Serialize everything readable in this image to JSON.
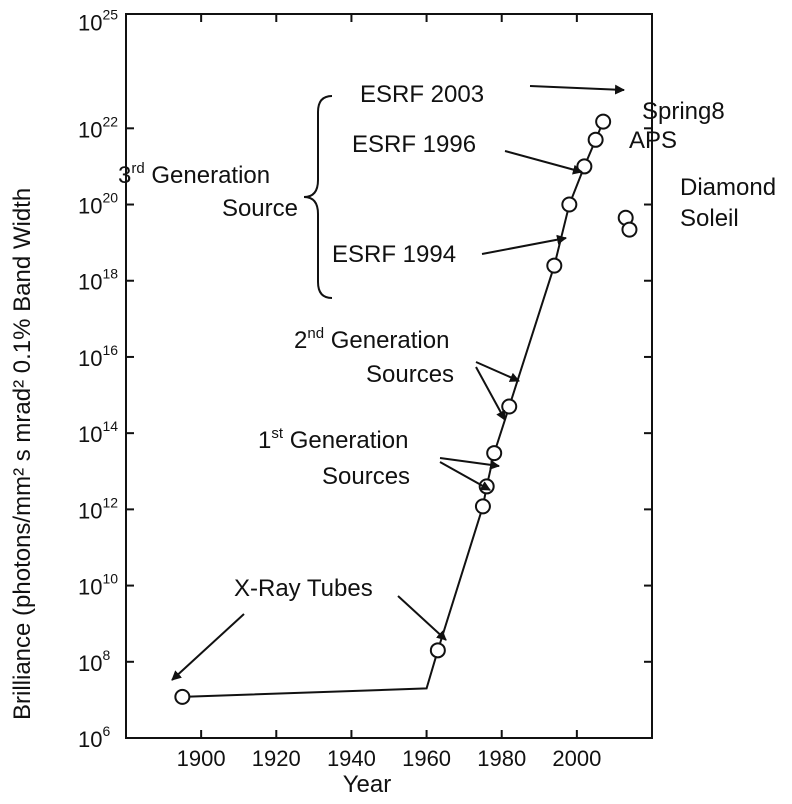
{
  "chart_data": {
    "type": "scatter",
    "xlabel": "Year",
    "ylabel": "Brilliance (photons/mm² s mrad² 0.1% Band Width",
    "y_scale": "log",
    "xlim": [
      1880,
      2020
    ],
    "ylim_exponents": [
      6,
      25
    ],
    "x_ticks": [
      "1900",
      "1920",
      "1940",
      "1960",
      "1980",
      "2000"
    ],
    "y_ticks": [
      {
        "base": "10",
        "exp": "6",
        "exponent": 6
      },
      {
        "base": "10",
        "exp": "8",
        "exponent": 8
      },
      {
        "base": "10",
        "exp": "10",
        "exponent": 10
      },
      {
        "base": "10",
        "exp": "12",
        "exponent": 12
      },
      {
        "base": "10",
        "exp": "14",
        "exponent": 14
      },
      {
        "base": "10",
        "exp": "16",
        "exponent": 16
      },
      {
        "base": "10",
        "exp": "18",
        "exponent": 18
      },
      {
        "base": "10",
        "exp": "20",
        "exponent": 20
      },
      {
        "base": "10",
        "exp": "22",
        "exponent": 22
      },
      {
        "base": "10",
        "exp": "25",
        "exponent": 24.8
      }
    ],
    "trend_line": [
      [
        1895,
        12000000.0
      ],
      [
        1960,
        20000000.0
      ],
      [
        1963,
        200000000.0
      ],
      [
        1975,
        1200000000000.0
      ],
      [
        1976,
        4000000000000.0
      ],
      [
        1978,
        30000000000000.0
      ],
      [
        1982,
        500000000000000.0
      ],
      [
        1994,
        2.5e+18
      ],
      [
        1998,
        1e+20
      ],
      [
        2002,
        1e+21
      ],
      [
        2005,
        5e+21
      ],
      [
        2007,
        1.5e+22
      ]
    ],
    "points": [
      {
        "x": 1895,
        "y": 12000000.0
      },
      {
        "x": 1963,
        "y": 200000000.0
      },
      {
        "x": 1975,
        "y": 1200000000000.0
      },
      {
        "x": 1976,
        "y": 4000000000000.0
      },
      {
        "x": 1978,
        "y": 30000000000000.0
      },
      {
        "x": 1982,
        "y": 500000000000000.0
      },
      {
        "x": 1994,
        "y": 2.5e+18
      },
      {
        "x": 1998,
        "y": 1e+20
      },
      {
        "x": 2002,
        "y": 1e+21
      },
      {
        "x": 2005,
        "y": 5e+21
      },
      {
        "x": 2007,
        "y": 1.5e+22
      },
      {
        "x": 2013,
        "y": 4.5e+19
      },
      {
        "x": 2014,
        "y": 2.2e+19
      }
    ],
    "annotations": {
      "esrf_2003": "ESRF 2003",
      "esrf_1996": "ESRF 1996",
      "esrf_1994": "ESRF 1994",
      "spring8": "Spring8",
      "aps": "APS",
      "diamond": "Diamond",
      "soleil": "Soleil",
      "gen3_num": "3",
      "gen3_sup": "rd",
      "gen3_word": " Generation",
      "gen3_line2": "Source",
      "gen2_num": "2",
      "gen2_sup": "nd",
      "gen2_word": " Generation",
      "gen2_line2": "Sources",
      "gen1_num": "1",
      "gen1_sup": "st",
      "gen1_word": " Generation",
      "gen1_line2": "Sources",
      "xray_tubes": "X-Ray Tubes"
    }
  }
}
